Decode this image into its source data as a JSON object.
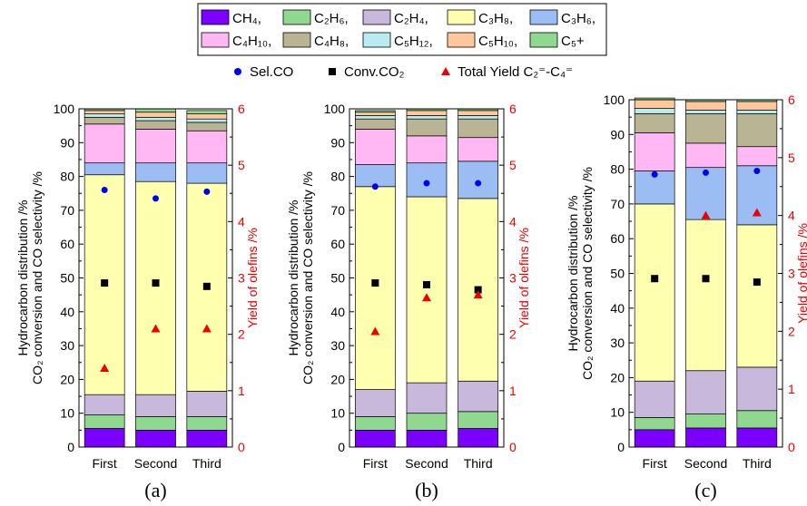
{
  "legend": {
    "components": [
      {
        "label": "CH₄,",
        "color": "#7b00ff"
      },
      {
        "label": "C₂H₆,",
        "color": "#90d890"
      },
      {
        "label": "C₂H₄,",
        "color": "#c8b8dc"
      },
      {
        "label": "C₃H₈,",
        "color": "#ffffb0"
      },
      {
        "label": "C₃H₆,",
        "color": "#9cbcf4"
      },
      {
        "label": "C₄H₁₀,",
        "color": "#ffb8f4"
      },
      {
        "label": "C₄H₈,",
        "color": "#b8b494"
      },
      {
        "label": "C₅H₁₂,",
        "color": "#b8ecf0"
      },
      {
        "label": "C₅H₁₀,",
        "color": "#ffc89c"
      },
      {
        "label": "C₅+",
        "color": "#90d890"
      }
    ],
    "markers": [
      {
        "label": "Sel.CO",
        "shape": "circle",
        "color": "#0000ee"
      },
      {
        "label": "Conv.CO₂",
        "shape": "square",
        "color": "#000000"
      },
      {
        "label": "Total Yield C₂⁼-C₄⁼",
        "shape": "triangle",
        "color": "#ee0000"
      }
    ]
  },
  "axes_text": {
    "left_ylabel_line1": "Hydrocarbon distribution /%",
    "left_ylabel_line2": "CO₂ conversion and CO selectivity /%",
    "right_ylabel": "Yield of olefins /%",
    "left_ticks": [
      "0",
      "10",
      "20",
      "30",
      "40",
      "50",
      "60",
      "70",
      "80",
      "90",
      "100"
    ],
    "right_ticks": [
      "0",
      "1",
      "2",
      "3",
      "4",
      "5",
      "6"
    ]
  },
  "chart_data": [
    {
      "type": "bar",
      "panel_label": "(a)",
      "categories": [
        "First",
        "Second",
        "Third"
      ],
      "ylim": [
        0,
        100
      ],
      "y2lim": [
        0,
        6
      ],
      "stacks": [
        [
          5.5,
          4,
          6,
          65,
          3.5,
          11.5,
          2,
          1,
          1,
          0.5
        ],
        [
          5,
          4,
          6.5,
          63,
          5.5,
          10,
          2.5,
          1,
          1.5,
          1
        ],
        [
          5,
          4,
          7.5,
          61.5,
          6,
          9.5,
          2.5,
          1,
          1.5,
          1
        ]
      ],
      "sel_co": [
        76,
        73.5,
        75.5
      ],
      "conv_co2": [
        48.5,
        48.5,
        47.5
      ],
      "olefin_yield": [
        1.4,
        2.1,
        2.1
      ]
    },
    {
      "type": "bar",
      "panel_label": "(b)",
      "categories": [
        "First",
        "Second",
        "Third"
      ],
      "ylim": [
        0,
        100
      ],
      "y2lim": [
        0,
        6
      ],
      "stacks": [
        [
          5,
          4,
          8,
          60,
          6.5,
          10.5,
          3,
          1,
          1,
          0.5
        ],
        [
          5,
          5,
          9,
          55,
          10,
          8,
          5,
          1,
          1.5,
          0.5
        ],
        [
          5.5,
          5,
          9,
          54,
          11,
          7,
          5.5,
          1,
          1.5,
          0.5
        ]
      ],
      "sel_co": [
        77,
        78,
        78
      ],
      "conv_co2": [
        48.5,
        48,
        46.5
      ],
      "olefin_yield": [
        2.05,
        2.65,
        2.7
      ]
    },
    {
      "type": "bar",
      "panel_label": "(c)",
      "categories": [
        "First",
        "Second",
        "Third"
      ],
      "ylim": [
        0,
        100
      ],
      "y2lim": [
        0,
        6
      ],
      "stacks": [
        [
          5,
          3.5,
          10.5,
          51,
          9.5,
          11,
          5.5,
          1.5,
          2.5,
          0.5
        ],
        [
          5.5,
          4,
          12.5,
          43.5,
          15,
          7,
          8.5,
          1,
          2.5,
          0.5
        ],
        [
          5.5,
          5,
          12.5,
          41,
          17,
          5.5,
          9.5,
          1,
          2.5,
          0.5
        ]
      ],
      "sel_co": [
        78.5,
        79,
        79.5
      ],
      "conv_co2": [
        48.5,
        48.5,
        47.5
      ],
      "olefin_yield": [
        0,
        4.0,
        4.05
      ]
    }
  ]
}
